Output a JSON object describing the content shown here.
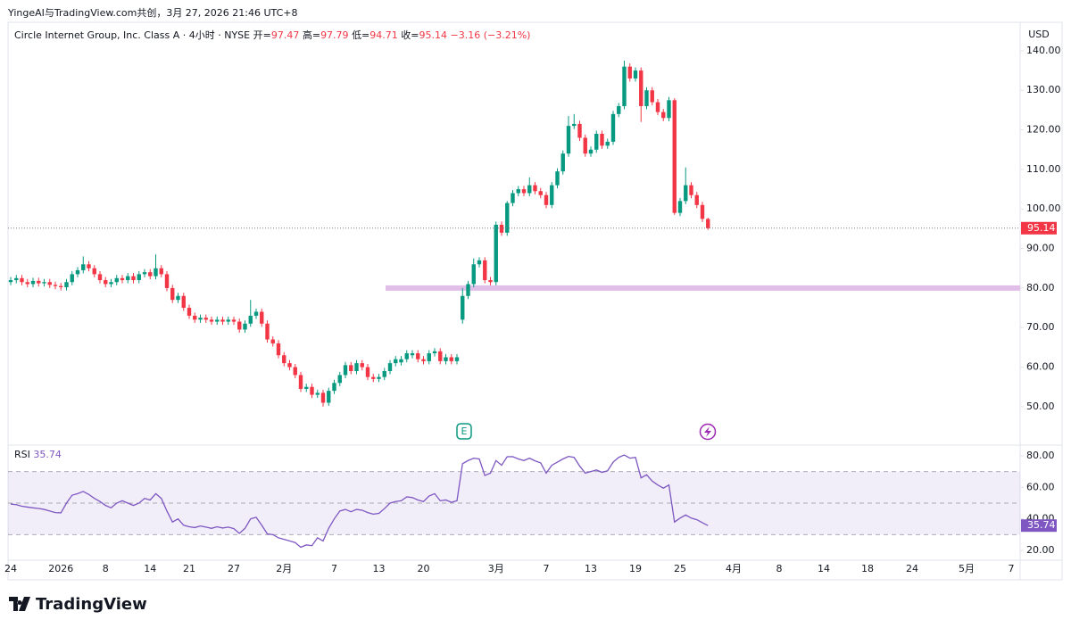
{
  "chart_data": {
    "type": "candlestick",
    "attribution": "YingeAI与TradingView.com共创，3月 27, 2026 21:46 UTC+8",
    "title": "Circle Internet Group, Inc. Class A · 4小时 · NYSE",
    "currency": "USD",
    "ohlc_legend": [
      {
        "label": "开=",
        "value": 97.47
      },
      {
        "label": "高=",
        "value": 97.79
      },
      {
        "label": "低=",
        "value": 94.71
      },
      {
        "label": "收=",
        "value": 95.14
      }
    ],
    "change": {
      "value": -3.16,
      "label": "−3.16"
    },
    "change_pct": {
      "value": -3.21,
      "label": "(−3.21%)"
    },
    "categories": [
      "24",
      null,
      null,
      null,
      null,
      null,
      null,
      null,
      null,
      "2026",
      null,
      null,
      null,
      null,
      null,
      null,
      null,
      "8",
      null,
      null,
      null,
      null,
      null,
      null,
      null,
      "14",
      null,
      null,
      null,
      null,
      null,
      null,
      "21",
      null,
      null,
      null,
      null,
      null,
      null,
      null,
      "27",
      null,
      null,
      null,
      null,
      null,
      null,
      null,
      null,
      "2月",
      null,
      null,
      null,
      null,
      null,
      null,
      null,
      null,
      "7",
      null,
      null,
      null,
      null,
      null,
      null,
      null,
      "13",
      null,
      null,
      null,
      null,
      null,
      null,
      null,
      "20",
      null,
      null,
      null,
      null,
      null,
      null,
      null,
      null,
      null,
      null,
      null,
      null,
      "3月",
      null,
      null,
      null,
      null,
      null,
      null,
      null,
      null,
      "7",
      null,
      null,
      null,
      null,
      null,
      null,
      null,
      "13",
      null,
      null,
      null,
      null,
      null,
      null,
      null,
      "19",
      null,
      null,
      null,
      null,
      null,
      null,
      null,
      "25",
      null,
      null,
      null,
      null,
      null
    ],
    "future_categories": [
      "4月",
      "8",
      "14",
      "18",
      "24",
      "5月",
      "7"
    ],
    "open": [
      81.5,
      82,
      82.5,
      81.5,
      81,
      81.8,
      81.2,
      81.5,
      80.8,
      80.5,
      80.2,
      81.5,
      83.5,
      84.5,
      86,
      85,
      83.5,
      82,
      81,
      81.5,
      82.5,
      82,
      83,
      82,
      83.5,
      84,
      83,
      85,
      83.5,
      80,
      77,
      78,
      75,
      73,
      72,
      72.5,
      72,
      71.5,
      72,
      71.5,
      72,
      71.5,
      69.5,
      71,
      73,
      74,
      71,
      67,
      66,
      63,
      61,
      60,
      58,
      54.5,
      55,
      53,
      53.5,
      51,
      54,
      56,
      58,
      60.5,
      59,
      61,
      60,
      57.5,
      57,
      57.5,
      59,
      61,
      61.2,
      62,
      63,
      63.5,
      62,
      61.5,
      63.5,
      64,
      61.5,
      62.5,
      61.5,
      72,
      78,
      81,
      86,
      87,
      82,
      81.5,
      96,
      94,
      101.5,
      104,
      105,
      104,
      106,
      104.5,
      103.5,
      101,
      106,
      109.5,
      114,
      121,
      121.5,
      118,
      114,
      115,
      119,
      116,
      117,
      124,
      126,
      136,
      133,
      135,
      126,
      130,
      127,
      124.5,
      123,
      127.5,
      99,
      102,
      106,
      103.5,
      101,
      97.47
    ],
    "high": [
      82.8,
      83.3,
      83.3,
      82.3,
      82.6,
      82.6,
      82.3,
      82.3,
      81.6,
      81.3,
      82.3,
      84.3,
      85.3,
      88,
      86.8,
      85.8,
      84.3,
      82.8,
      82.3,
      83.3,
      83.3,
      83.8,
      83.8,
      84.3,
      84.8,
      84.8,
      88.5,
      85.8,
      84.3,
      80.8,
      78.8,
      78.8,
      75.8,
      73.8,
      73.3,
      73.3,
      72.8,
      72.8,
      72.8,
      72.8,
      72.8,
      72.3,
      71.8,
      77,
      74.8,
      74.8,
      71.8,
      67.8,
      66.8,
      63.8,
      61.8,
      60.8,
      58.8,
      55.8,
      55.8,
      54.3,
      54.3,
      54.8,
      56.8,
      58.8,
      61.3,
      61.3,
      61.8,
      61.8,
      60.8,
      58.3,
      58.3,
      59.8,
      61.8,
      62.8,
      62.8,
      64.3,
      64.3,
      64.3,
      62.8,
      64.3,
      64.8,
      64.8,
      63.3,
      63.3,
      63.3,
      80,
      81.8,
      87.5,
      87.8,
      87.8,
      82.8,
      96.8,
      96.8,
      102,
      104.8,
      105.8,
      105.8,
      108,
      106.8,
      105.3,
      104.3,
      106.8,
      110.3,
      114.8,
      123.5,
      124,
      122.3,
      118.8,
      115.8,
      119.8,
      119.8,
      117.8,
      124.8,
      126.8,
      137.5,
      136.8,
      135.8,
      135.8,
      130.8,
      130.8,
      127.8,
      125.3,
      128.3,
      128,
      102.8,
      110.5,
      106.8,
      104.3,
      101.8,
      97.79
    ],
    "low": [
      80.7,
      81.2,
      80.7,
      80.2,
      80.2,
      80.4,
      80.4,
      80,
      79.7,
      79.4,
      79.4,
      80.7,
      82.7,
      83.7,
      84.2,
      82.7,
      81.2,
      80.2,
      80.2,
      80.7,
      81.2,
      81.2,
      81.2,
      81.2,
      82.7,
      82.2,
      82.2,
      82.7,
      79.2,
      76.2,
      76.2,
      74.2,
      72.2,
      71.2,
      71.2,
      71.2,
      70.7,
      70.7,
      70.7,
      70.7,
      70.7,
      68.7,
      68.7,
      70.2,
      72.2,
      70.2,
      66.2,
      65.2,
      62.2,
      60.2,
      59.2,
      57.2,
      53.7,
      53.7,
      52.2,
      52.2,
      50,
      50.2,
      53.2,
      55.2,
      57.2,
      58.2,
      58.2,
      59.2,
      56.7,
      56.2,
      56.2,
      56.7,
      58.2,
      60.2,
      60.4,
      61.2,
      62.2,
      61.2,
      60.7,
      60.7,
      62.7,
      60.7,
      60.7,
      60.7,
      60.7,
      71,
      77.2,
      80.2,
      85.2,
      81.2,
      80.7,
      80.7,
      93.2,
      93.2,
      100.7,
      103.2,
      103.2,
      103.2,
      103.7,
      102.7,
      100.2,
      100.2,
      105.2,
      108.7,
      113.2,
      120.2,
      117.2,
      113.2,
      113.2,
      114.2,
      115.2,
      115.2,
      116.2,
      123.2,
      125.2,
      132.2,
      132.2,
      122,
      125.2,
      126.2,
      123.7,
      122.2,
      122.2,
      98.5,
      98.2,
      101.2,
      102.7,
      100.2,
      96.7,
      94.71
    ],
    "close": [
      82,
      82.5,
      81.5,
      81,
      81.8,
      81.2,
      81.5,
      80.8,
      80.5,
      80.2,
      81.5,
      83.5,
      84.5,
      86,
      85,
      83.5,
      82,
      81,
      81.5,
      82.5,
      82,
      83,
      82,
      83.5,
      84,
      83,
      85,
      83.5,
      80,
      77,
      78,
      75,
      73,
      72,
      72.5,
      72,
      71.5,
      72,
      71.5,
      72,
      71.5,
      69.5,
      71,
      73,
      74,
      71,
      67,
      66,
      63,
      61,
      60,
      58,
      54.5,
      55,
      53,
      53.5,
      51,
      54,
      56,
      58,
      60.5,
      59,
      61,
      60,
      57.5,
      57,
      57.5,
      59,
      61,
      62,
      62,
      63.5,
      63.5,
      62,
      61.5,
      63.5,
      64,
      61.5,
      62.5,
      61.5,
      62.5,
      78,
      81,
      86,
      87,
      82,
      81.5,
      96,
      94,
      101.5,
      104,
      105,
      104,
      106,
      104.5,
      103.5,
      101,
      106,
      109.5,
      114,
      121,
      121.5,
      118,
      114,
      115,
      119,
      116,
      117,
      124,
      126,
      136,
      133,
      135,
      126,
      130,
      127,
      124.5,
      123,
      127.5,
      99,
      102,
      106,
      103.5,
      101,
      97.5,
      95.14
    ],
    "up_color": "#089981",
    "down_color": "#f23645",
    "ylim": [
      40.5,
      147.2
    ],
    "yticks": [
      {
        "value": 50,
        "label": "50.00"
      },
      {
        "value": 60,
        "label": "60.00"
      },
      {
        "value": 70,
        "label": "70.00"
      },
      {
        "value": 80,
        "label": "80.00"
      },
      {
        "value": 90,
        "label": "90.00"
      },
      {
        "value": 100,
        "label": "100.00"
      },
      {
        "value": 110,
        "label": "110.00"
      },
      {
        "value": 120,
        "label": "120.00"
      },
      {
        "value": 130,
        "label": "130.00"
      },
      {
        "value": 140,
        "label": "140.00"
      }
    ],
    "horizontal_line": {
      "value": 80,
      "color": "#e1bee7"
    },
    "earnings_marker": "E",
    "rsi": {
      "name": "RSI",
      "color": "#7e57c2",
      "values": [
        49.4,
        49,
        48,
        47.5,
        47,
        46.6,
        46,
        45,
        44,
        43.8,
        50,
        55,
        56,
        57.4,
        55.5,
        53,
        51,
        48.5,
        47,
        50,
        51.5,
        50,
        48.5,
        50,
        53,
        52,
        56,
        53,
        45,
        38,
        40,
        36,
        35,
        34.5,
        35.5,
        34.8,
        34,
        35,
        34.2,
        34.8,
        33.8,
        30.8,
        34,
        40,
        41,
        36,
        30.5,
        30,
        28,
        27,
        26,
        25,
        22,
        23.5,
        23,
        28,
        26,
        34,
        40,
        45,
        46,
        44.5,
        46,
        45.5,
        44,
        43,
        43.5,
        46.5,
        50,
        51,
        51.5,
        54,
        53.5,
        52,
        51,
        54.5,
        56,
        51.5,
        52,
        50.5,
        51.5,
        75,
        77,
        78.5,
        78,
        67.5,
        69,
        77,
        74,
        79.4,
        79.5,
        78,
        77,
        78.5,
        76.8,
        75.5,
        69,
        74,
        76,
        78,
        79.6,
        79,
        73.5,
        69,
        70,
        71,
        69.5,
        70.5,
        76,
        79,
        80.5,
        78.5,
        79,
        66,
        68,
        64,
        61.5,
        59.5,
        61.5,
        38,
        40.5,
        42.5,
        40.5,
        39.5,
        37.6,
        35.74
      ],
      "ylim": [
        13.8,
        86.2
      ],
      "yticks": [
        {
          "value": 20,
          "label": "20.00"
        },
        {
          "value": 40,
          "label": "40.00"
        },
        {
          "value": 60,
          "label": "60.00"
        },
        {
          "value": 80,
          "label": "80.00"
        }
      ],
      "bands": [
        30,
        50,
        70
      ]
    },
    "brand": "TradingView"
  }
}
